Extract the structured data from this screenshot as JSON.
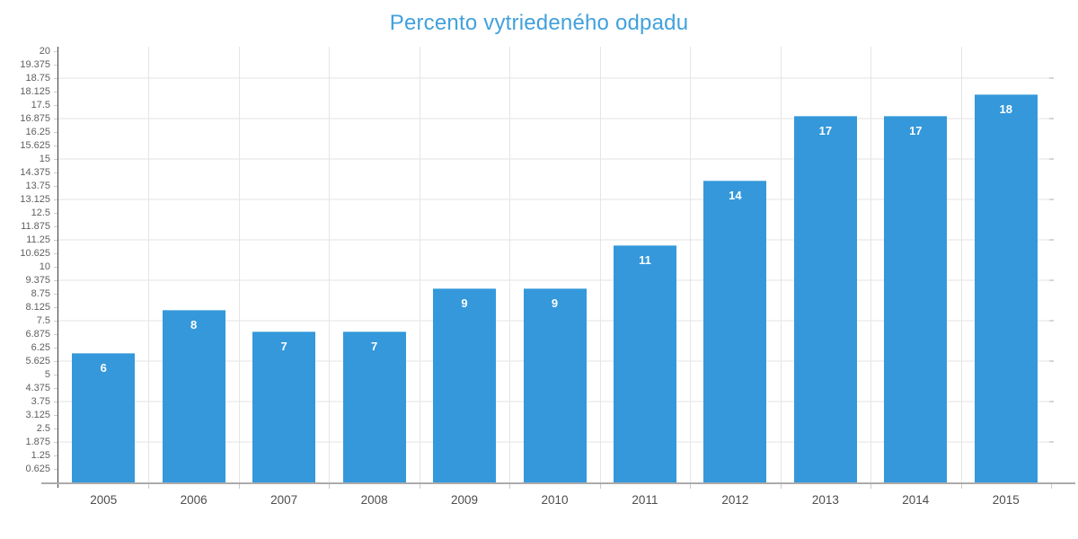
{
  "chart_data": {
    "type": "bar",
    "title": "Percento vytriedeného odpadu",
    "categories": [
      "2005",
      "2006",
      "2007",
      "2008",
      "2009",
      "2010",
      "2011",
      "2012",
      "2013",
      "2014",
      "2015"
    ],
    "values": [
      6,
      8,
      7,
      7,
      9,
      9,
      11,
      14,
      17,
      17,
      18
    ],
    "bar_value_labels": [
      "6",
      "8",
      "7",
      "7",
      "9",
      "9",
      "11",
      "14",
      "17",
      "17",
      "18"
    ],
    "xlabel": "",
    "ylabel": "",
    "ylim": [
      0,
      20
    ],
    "ytick_step": 0.625,
    "ytick_labels": [
      "0.625",
      "1.25",
      "1.875",
      "2.5",
      "3.125",
      "3.75",
      "4.375",
      "5",
      "5.625",
      "6.25",
      "6.875",
      "7.5",
      "8.125",
      "8.75",
      "9.375",
      "10",
      "10.625",
      "11.25",
      "11.875",
      "12.5",
      "13.125",
      "13.75",
      "14.375",
      "15",
      "15.625",
      "16.25",
      "16.875",
      "17.5",
      "18.125",
      "18.75",
      "19.375",
      "20"
    ],
    "gridline_values": [
      1.875,
      3.75,
      5.625,
      7.5,
      9.375,
      11.25,
      13.125,
      15,
      16.875,
      18.75
    ],
    "grid": true,
    "legend": "none",
    "colors": {
      "bar": "#3498db",
      "bar_label": "#ffffff",
      "title": "#41a1dc",
      "y_axis_line": "#3e3e3e",
      "x_axis_line": "#ababab",
      "h_gridline": "#f1f1f1",
      "v_gridline": "#e5e5e5",
      "y_tick_label": "#5f5f5f",
      "x_tick_label": "#4d4d4d"
    }
  }
}
